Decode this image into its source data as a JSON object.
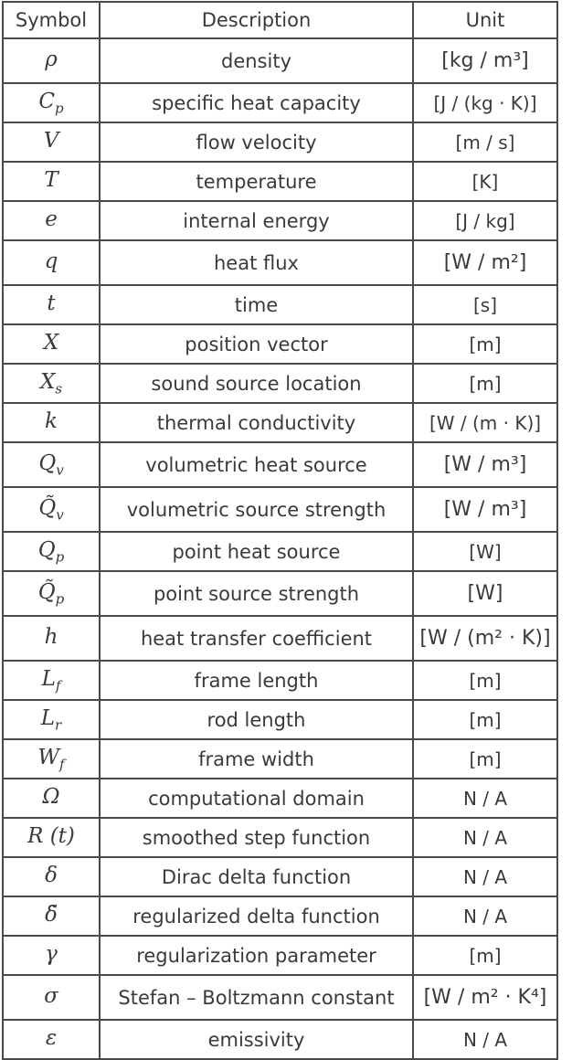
{
  "table": {
    "headers": [
      "Symbol",
      "Description",
      "Unit"
    ],
    "rows": [
      {
        "symbol": "ρ",
        "sub": "",
        "description": "density",
        "unit": "[kg / m³]",
        "tall": true
      },
      {
        "symbol": "C",
        "sub": "p",
        "description": "specific heat capacity",
        "unit": "[J / (kg · K)]",
        "tall": false
      },
      {
        "symbol": "V",
        "sub": "",
        "description": "flow velocity",
        "unit": "[m / s]",
        "tall": false
      },
      {
        "symbol": "T",
        "sub": "",
        "description": "temperature",
        "unit": "[K]",
        "tall": false
      },
      {
        "symbol": "e",
        "sub": "",
        "description": "internal energy",
        "unit": "[J / kg]",
        "tall": false
      },
      {
        "symbol": "q",
        "sub": "",
        "description": "heat flux",
        "unit": "[W / m²]",
        "tall": true
      },
      {
        "symbol": "t",
        "sub": "",
        "description": "time",
        "unit": "[s]",
        "tall": false
      },
      {
        "symbol": "X",
        "sub": "",
        "description": "position vector",
        "unit": "[m]",
        "tall": false
      },
      {
        "symbol": "X",
        "sub": "s",
        "description": "sound source location",
        "unit": "[m]",
        "tall": false
      },
      {
        "symbol": "k",
        "sub": "",
        "description": "thermal conductivity",
        "unit": "[W / (m · K)]",
        "tall": false
      },
      {
        "symbol": "Q",
        "sub": "v",
        "description": "volumetric heat source",
        "unit": "[W / m³]",
        "tall": true
      },
      {
        "symbol": "Q̃",
        "sub": "v",
        "description": "volumetric source strength",
        "unit": "[W / m³]",
        "tall": true
      },
      {
        "symbol": "Q",
        "sub": "p",
        "description": "point heat source",
        "unit": "[W]",
        "tall": false
      },
      {
        "symbol": "Q̃",
        "sub": "p",
        "description": "point source strength",
        "unit": "[W]",
        "tall": true
      },
      {
        "symbol": "h",
        "sub": "",
        "description": "heat transfer coefficient",
        "unit": "[W / (m² · K)]",
        "tall": true
      },
      {
        "symbol": "L",
        "sub": "f",
        "description": "frame length",
        "unit": "[m]",
        "tall": false
      },
      {
        "symbol": "L",
        "sub": "r",
        "description": "rod length",
        "unit": "[m]",
        "tall": false
      },
      {
        "symbol": "W",
        "sub": "f",
        "description": "frame width",
        "unit": "[m]",
        "tall": false
      },
      {
        "symbol": "Ω",
        "sub": "",
        "description": "computational domain",
        "unit": "N / A",
        "tall": false
      },
      {
        "symbol": "R (t)",
        "sub": "",
        "description": "smoothed step function",
        "unit": "N / A",
        "tall": false
      },
      {
        "symbol": "δ",
        "sub": "",
        "description": "Dirac delta function",
        "unit": "N / A",
        "tall": false
      },
      {
        "symbol": "δ̃",
        "sub": "",
        "description": "regularized delta function",
        "unit": "N / A",
        "tall": false
      },
      {
        "symbol": "γ",
        "sub": "",
        "description": "regularization parameter",
        "unit": "[m]",
        "tall": false
      },
      {
        "symbol": "σ",
        "sub": "",
        "description": "Stefan – Boltzmann constant",
        "unit": "[W / m² · K⁴]",
        "tall": true
      },
      {
        "symbol": "ε",
        "sub": "",
        "description": "emissivity",
        "unit": "N / A",
        "tall": false
      }
    ]
  }
}
